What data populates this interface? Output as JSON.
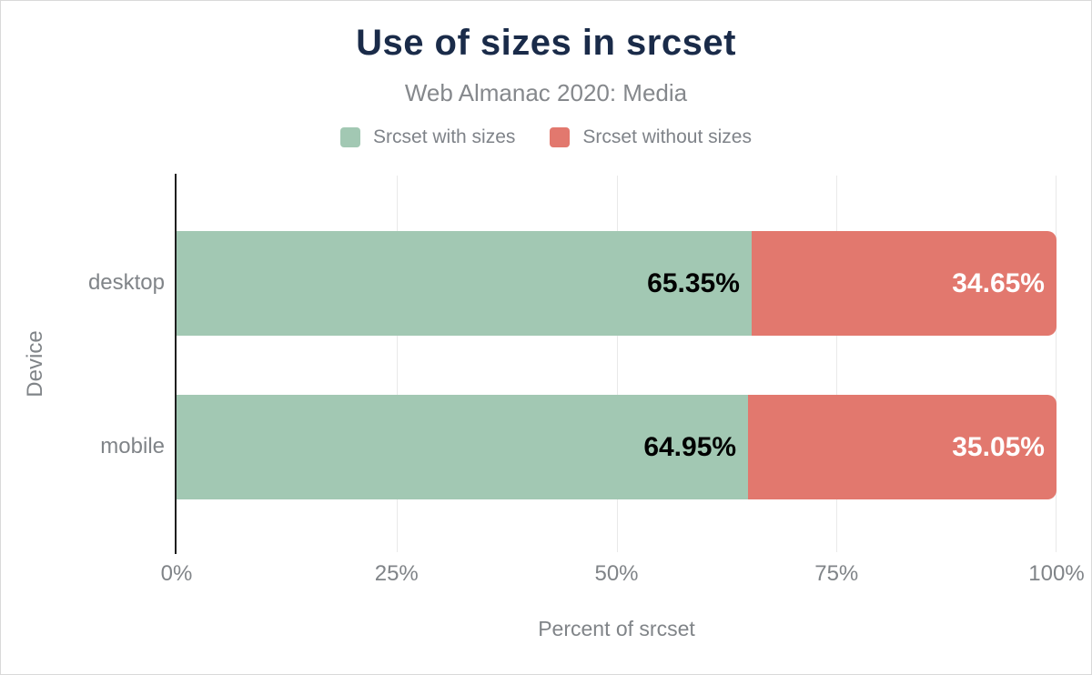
{
  "chart": {
    "title": "Use of sizes in srcset",
    "subtitle": "Web Almanac 2020: Media",
    "xlabel": "Percent of srcset",
    "ylabel": "Device"
  },
  "chart_data": {
    "type": "bar",
    "orientation": "horizontal-stacked",
    "title": "Use of sizes in srcset",
    "subtitle": "Web Almanac 2020: Media",
    "xlabel": "Percent of srcset",
    "ylabel": "Device",
    "categories": [
      "desktop",
      "mobile"
    ],
    "series": [
      {
        "name": "Srcset with sizes",
        "color": "#a2c8b3",
        "label_color": "#000000",
        "values": [
          65.35,
          64.95
        ],
        "labels": [
          "65.35%",
          "64.95%"
        ]
      },
      {
        "name": "Srcset without sizes",
        "color": "#e2786e",
        "label_color": "#ffffff",
        "values": [
          34.65,
          35.05
        ],
        "labels": [
          "34.65%",
          "35.05%"
        ]
      }
    ],
    "xlim": [
      0,
      100
    ],
    "x_ticks": [
      "0%",
      "25%",
      "50%",
      "75%",
      "100%"
    ],
    "grid": "vertical-gridlines",
    "legend_position": "top"
  },
  "colors": {
    "title_navy": "#1a2b49",
    "label_gray": "#808488",
    "gridline": "#e9e9e9",
    "axis_line": "#1f1f1f",
    "green": "#a2c8b3",
    "red": "#e2786e",
    "canvas_border": "#d9d9d9"
  }
}
